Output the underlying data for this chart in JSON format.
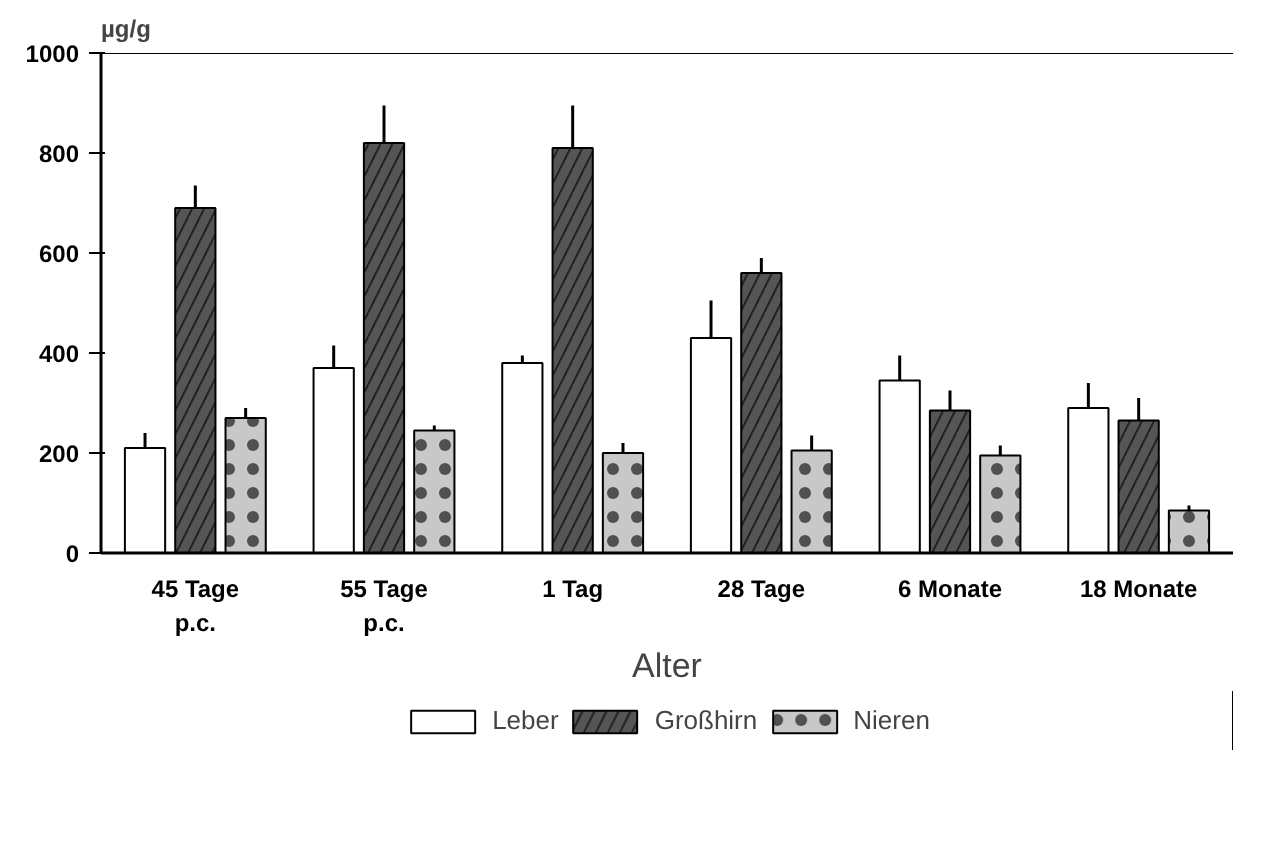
{
  "chart_data": {
    "type": "bar",
    "ylabel": "µg/g",
    "xlabel": "Alter",
    "categories": [
      "45 Tage\np.c.",
      "55 Tage\np.c.",
      "1 Tag",
      "28 Tage",
      "6 Monate",
      "18 Monate"
    ],
    "series": [
      {
        "name": "Leber",
        "color": "#ffffff",
        "values": [
          210,
          370,
          380,
          430,
          345,
          290
        ],
        "errors": [
          [
            210,
            240
          ],
          [
            370,
            415
          ],
          [
            380,
            395
          ],
          [
            430,
            505
          ],
          [
            345,
            395
          ],
          [
            290,
            340
          ]
        ]
      },
      {
        "name": "Großhirn",
        "color": "#555555",
        "values": [
          690,
          820,
          810,
          560,
          285,
          265
        ],
        "errors": [
          [
            690,
            735
          ],
          [
            820,
            895
          ],
          [
            810,
            895
          ],
          [
            560,
            590
          ],
          [
            285,
            325
          ],
          [
            265,
            310
          ]
        ]
      },
      {
        "name": "Nieren",
        "color": "#c8c8c8",
        "values": [
          270,
          245,
          200,
          205,
          195,
          85
        ],
        "errors": [
          [
            270,
            290
          ],
          [
            245,
            255
          ],
          [
            200,
            220
          ],
          [
            205,
            235
          ],
          [
            195,
            215
          ],
          [
            85,
            95
          ]
        ]
      }
    ],
    "ylim": [
      0,
      1000
    ],
    "yticks": [
      0,
      200,
      400,
      600,
      800,
      1000
    ],
    "grid": false,
    "legend": "bottom"
  }
}
